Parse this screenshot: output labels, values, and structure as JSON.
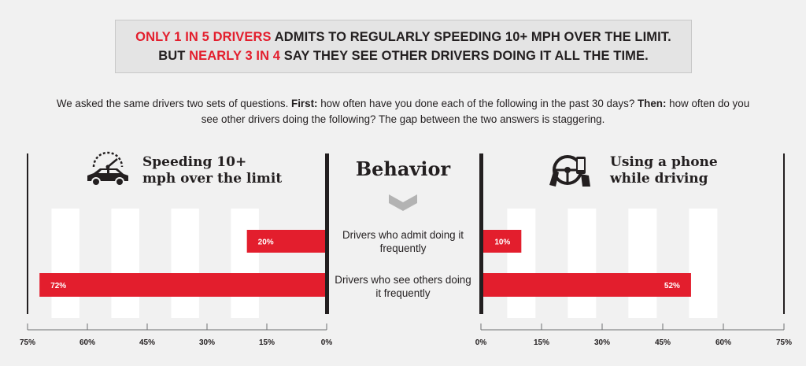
{
  "header": {
    "line1_red": "ONLY 1 IN 5 DRIVERS",
    "line1_rest": " ADMITS TO REGULARLY SPEEDING 10+ MPH OVER THE LIMIT.",
    "line2_start": "BUT ",
    "line2_red": "NEARLY 3 IN 4",
    "line2_rest": " SAY THEY SEE OTHER DRIVERS DOING IT ALL THE TIME."
  },
  "intro": {
    "part1": "We asked the same drivers two sets of questions. ",
    "bold1": "First:",
    "part2": " how often have you done each of the following in the past 30 days? ",
    "bold2": "Then:",
    "part3": " how often do you see other drivers doing the following? The gap between the two answers is staggering."
  },
  "center": {
    "title": "Behavior",
    "row1": "Drivers who admit doing it frequently",
    "row2": "Drivers who see others doing it frequently"
  },
  "colors": {
    "red": "#e31e2d",
    "dark": "#231f20",
    "stripe": "#ffffff"
  },
  "icons": {
    "left": "speeding-car-icon",
    "right": "phone-steering-icon"
  },
  "chart_data": [
    {
      "type": "bar",
      "title": "Speeding 10+ mph over the limit",
      "title_lines": [
        "Speeding 10+",
        "mph over the limit"
      ],
      "orientation": "horizontal",
      "direction": "right-to-left",
      "categories": [
        "Drivers who admit doing it frequently",
        "Drivers who see others doing it frequently"
      ],
      "values": [
        20,
        72
      ],
      "value_labels": [
        "20%",
        "72%"
      ],
      "xlim": [
        0,
        75
      ],
      "ticks": [
        75,
        60,
        45,
        30,
        15,
        0
      ],
      "tick_labels": [
        "75%",
        "60%",
        "45%",
        "30%",
        "15%",
        "0%"
      ]
    },
    {
      "type": "bar",
      "title": "Using a phone while driving",
      "title_lines": [
        "Using a phone",
        "while driving"
      ],
      "orientation": "horizontal",
      "direction": "left-to-right",
      "categories": [
        "Drivers who admit doing it frequently",
        "Drivers who see others doing it frequently"
      ],
      "values": [
        10,
        52
      ],
      "value_labels": [
        "10%",
        "52%"
      ],
      "xlim": [
        0,
        75
      ],
      "ticks": [
        0,
        15,
        30,
        45,
        60,
        75
      ],
      "tick_labels": [
        "0%",
        "15%",
        "30%",
        "45%",
        "60%",
        "75%"
      ]
    }
  ]
}
